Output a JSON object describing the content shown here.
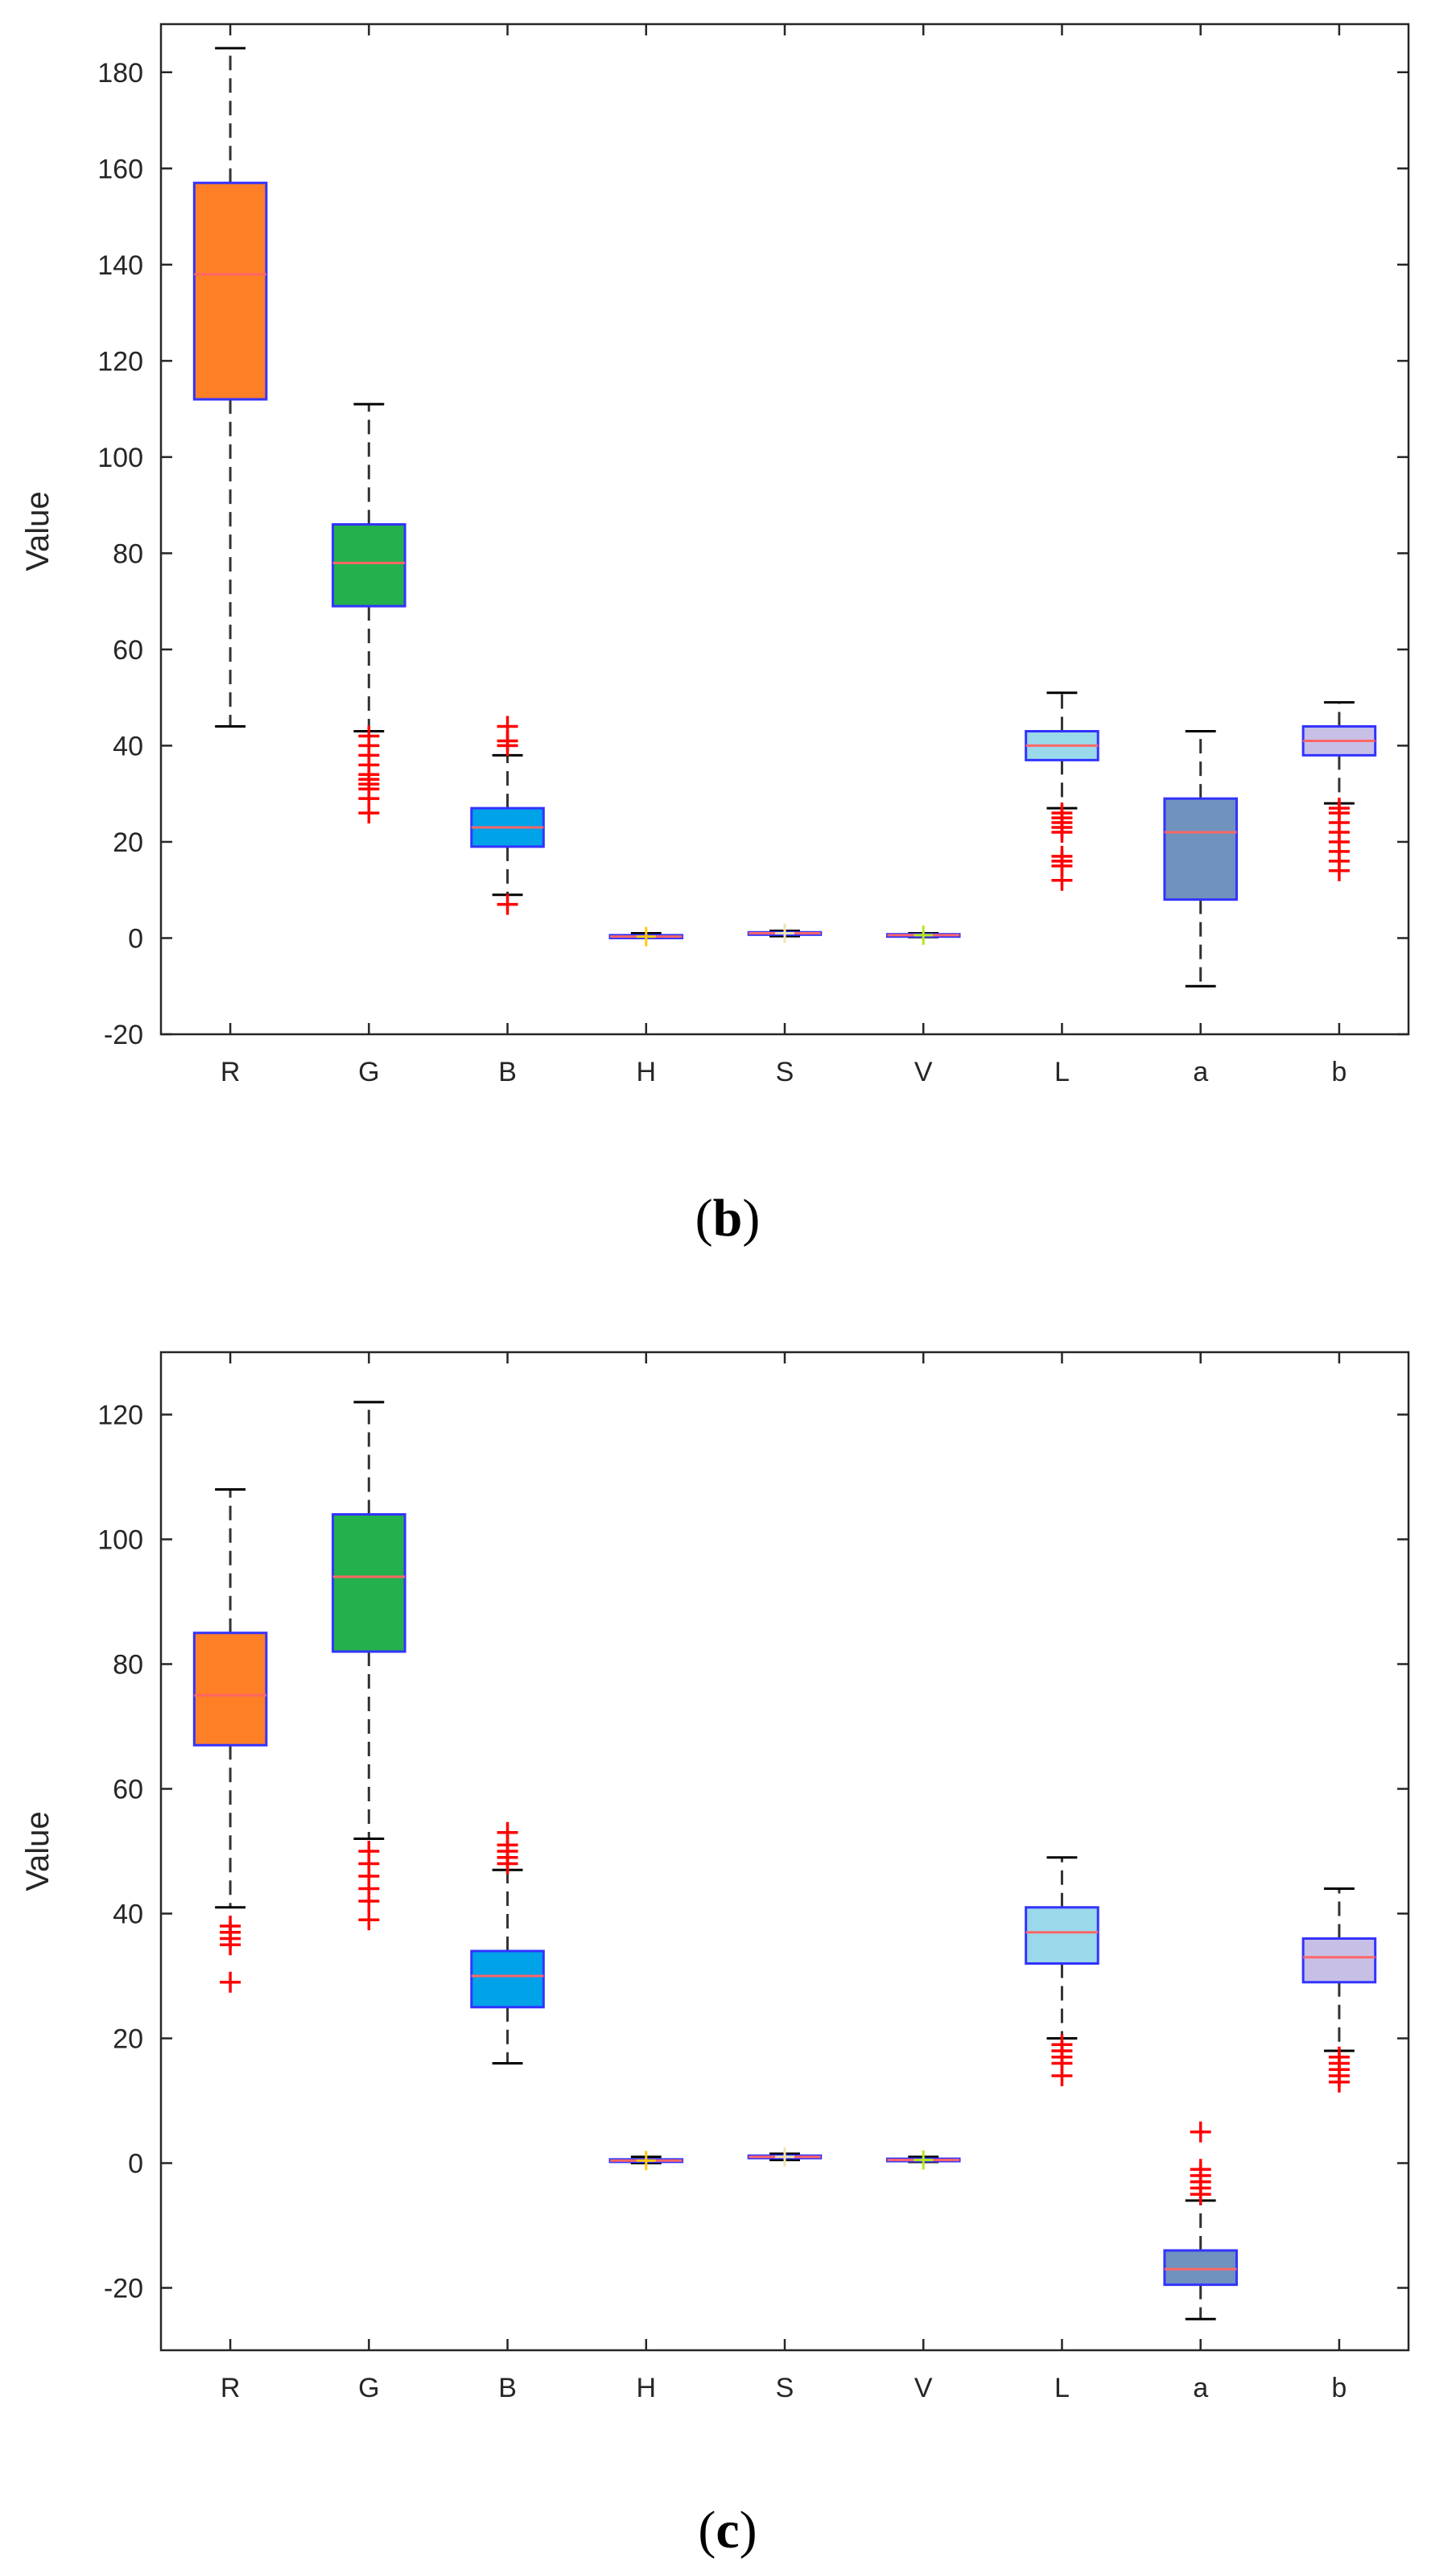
{
  "chart_data": [
    {
      "type": "box",
      "caption": "b",
      "ylabel": "Value",
      "ylim": [
        -20,
        190
      ],
      "yticks": [
        -20,
        0,
        20,
        40,
        60,
        80,
        100,
        120,
        140,
        160,
        180
      ],
      "categories": [
        "R",
        "G",
        "B",
        "H",
        "S",
        "V",
        "L",
        "a",
        "b"
      ],
      "boxes": [
        {
          "label": "R",
          "whisker_low": 44,
          "q1": 112,
          "median": 138,
          "q3": 157,
          "whisker_high": 185,
          "fill": "#FF7F27",
          "outliers": []
        },
        {
          "label": "G",
          "whisker_low": 43,
          "q1": 69,
          "median": 78,
          "q3": 86,
          "whisker_high": 111,
          "fill": "#22B14C",
          "outliers": [
            42,
            40,
            38,
            36,
            34,
            33,
            32,
            31,
            29,
            26
          ]
        },
        {
          "label": "B",
          "whisker_low": 9,
          "q1": 19,
          "median": 23,
          "q3": 27,
          "whisker_high": 38,
          "fill": "#00A2E8",
          "outliers": [
            44,
            41,
            40,
            7
          ]
        },
        {
          "label": "H",
          "whisker_low": 0,
          "q1": 0,
          "median": 0.3,
          "q3": 0.6,
          "whisker_high": 1,
          "fill": "#FFC90E",
          "outliers": []
        },
        {
          "label": "S",
          "whisker_low": 0.4,
          "q1": 0.7,
          "median": 1,
          "q3": 1.2,
          "whisker_high": 1.5,
          "fill": "#EFE4B0",
          "outliers": []
        },
        {
          "label": "V",
          "whisker_low": 0.2,
          "q1": 0.4,
          "median": 0.6,
          "q3": 0.8,
          "whisker_high": 1,
          "fill": "#B5E61D",
          "outliers": []
        },
        {
          "label": "L",
          "whisker_low": 27,
          "q1": 37,
          "median": 40,
          "q3": 43,
          "whisker_high": 51,
          "fill": "#99D9EA",
          "outliers": [
            26,
            25,
            24,
            23,
            22,
            17,
            16,
            15,
            12
          ]
        },
        {
          "label": "a",
          "whisker_low": -10,
          "q1": 8,
          "median": 22,
          "q3": 29,
          "whisker_high": 43,
          "fill": "#7092BE",
          "outliers": []
        },
        {
          "label": "b",
          "whisker_low": 28,
          "q1": 38,
          "median": 41,
          "q3": 44,
          "whisker_high": 49,
          "fill": "#C8BFE7",
          "outliers": [
            27,
            26,
            24,
            22,
            20,
            18,
            16,
            14
          ]
        }
      ]
    },
    {
      "type": "box",
      "caption": "c",
      "ylabel": "Value",
      "ylim": [
        -30,
        130
      ],
      "yticks": [
        -20,
        0,
        20,
        40,
        60,
        80,
        100,
        120
      ],
      "categories": [
        "R",
        "G",
        "B",
        "H",
        "S",
        "V",
        "L",
        "a",
        "b"
      ],
      "boxes": [
        {
          "label": "R",
          "whisker_low": 41,
          "q1": 67,
          "median": 75,
          "q3": 85,
          "whisker_high": 108,
          "fill": "#FF7F27",
          "outliers": [
            38,
            37,
            36,
            35,
            29
          ]
        },
        {
          "label": "G",
          "whisker_low": 52,
          "q1": 82,
          "median": 94,
          "q3": 104,
          "whisker_high": 122,
          "fill": "#22B14C",
          "outliers": [
            50,
            48,
            46,
            44,
            42,
            39
          ]
        },
        {
          "label": "B",
          "whisker_low": 16,
          "q1": 25,
          "median": 30,
          "q3": 34,
          "whisker_high": 47,
          "fill": "#00A2E8",
          "outliers": [
            53,
            51,
            50,
            49,
            48
          ]
        },
        {
          "label": "H",
          "whisker_low": 0,
          "q1": 0.2,
          "median": 0.4,
          "q3": 0.6,
          "whisker_high": 1,
          "fill": "#FFC90E",
          "outliers": []
        },
        {
          "label": "S",
          "whisker_low": 0.5,
          "q1": 0.8,
          "median": 1,
          "q3": 1.2,
          "whisker_high": 1.5,
          "fill": "#EFE4B0",
          "outliers": []
        },
        {
          "label": "V",
          "whisker_low": 0.2,
          "q1": 0.4,
          "median": 0.5,
          "q3": 0.7,
          "whisker_high": 1,
          "fill": "#B5E61D",
          "outliers": []
        },
        {
          "label": "L",
          "whisker_low": 20,
          "q1": 32,
          "median": 37,
          "q3": 41,
          "whisker_high": 49,
          "fill": "#99D9EA",
          "outliers": [
            19,
            18,
            17,
            16,
            14
          ]
        },
        {
          "label": "a",
          "whisker_low": -25,
          "q1": -19.5,
          "median": -17,
          "q3": -14,
          "whisker_high": -6,
          "fill": "#7092BE",
          "outliers": [
            5,
            -1,
            -2,
            -3,
            -4,
            -5
          ]
        },
        {
          "label": "b",
          "whisker_low": 18,
          "q1": 29,
          "median": 33,
          "q3": 36,
          "whisker_high": 44,
          "fill": "#C8BFE7",
          "outliers": [
            17,
            16,
            15,
            14,
            13
          ]
        }
      ]
    }
  ],
  "style": {
    "box_edge": "#3333FF",
    "median_color": "#FF6666",
    "outlier_color": "#FF0000",
    "whisker_color": "#333333",
    "axis_color": "#262626",
    "grid": false
  }
}
